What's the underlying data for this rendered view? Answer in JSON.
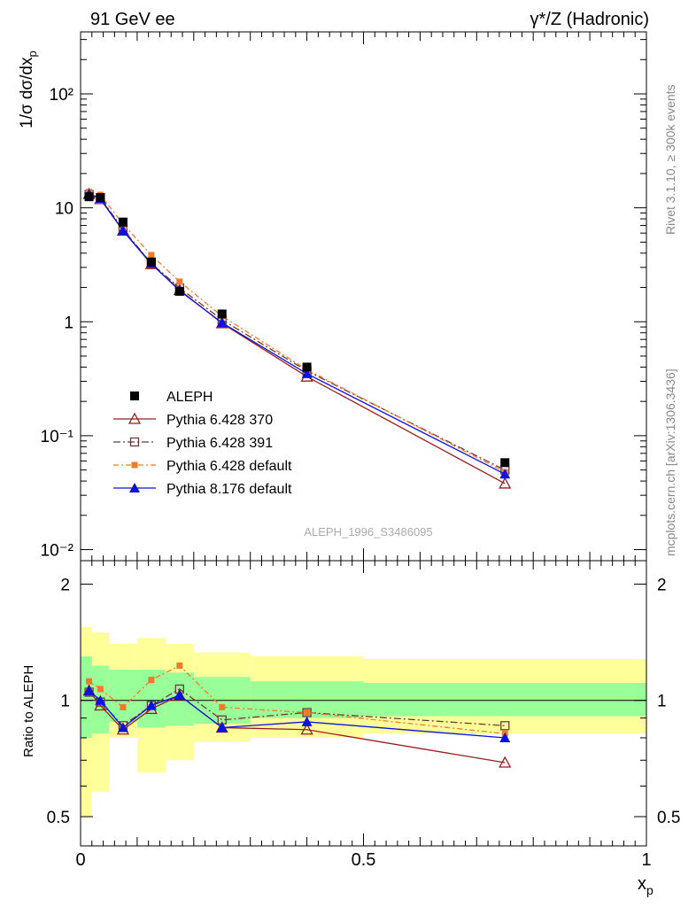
{
  "header": {
    "left_title": "91 GeV ee",
    "right_title": "γ*/Z (Hadronic)"
  },
  "side_labels": {
    "rivet": "Rivet 3.1.10, ≥ 300k events",
    "mcplots": "mcplots.cern.ch [arXiv:1306.3436]"
  },
  "watermark": "ALEPH_1996_S3486095",
  "colors": {
    "data": "#000000",
    "p370": "#9a1d1d",
    "p391": "#6a3a3a",
    "pdef": "#f5792a",
    "p8": "#0b11e6",
    "band_yellow": "#ffff99",
    "band_green": "#99ff99"
  },
  "chart_data": [
    {
      "type": "scatter",
      "title": "91 GeV ee",
      "ylabel": "1/σ dσ/dx_p",
      "xlabel": "",
      "yscale": "log",
      "ylim": [
        0.008,
        350
      ],
      "xlim": [
        0,
        1
      ],
      "y_ticks": [
        {
          "value": 0.01,
          "label": "10⁻²"
        },
        {
          "value": 0.1,
          "label": "10⁻¹"
        },
        {
          "value": 1,
          "label": "1"
        },
        {
          "value": 10,
          "label": "10"
        },
        {
          "value": 100,
          "label": "10²"
        }
      ],
      "x": [
        0.015,
        0.035,
        0.075,
        0.125,
        0.175,
        0.25,
        0.4,
        0.75
      ],
      "series": [
        {
          "name": "ALEPH",
          "key": "data",
          "marker": "square-filled",
          "values": [
            12.5,
            12.3,
            7.5,
            3.35,
            1.85,
            1.17,
            0.4,
            0.058
          ]
        },
        {
          "name": "Pythia 6.428 370",
          "key": "p370",
          "marker": "triangle-open",
          "dash": "",
          "values": [
            13.2,
            11.9,
            6.3,
            3.2,
            1.9,
            0.97,
            0.33,
            0.038
          ]
        },
        {
          "name": "Pythia 6.428 391",
          "key": "p391",
          "marker": "square-open",
          "dash": "8,3,2,3",
          "values": [
            13.1,
            12.2,
            6.5,
            3.25,
            1.98,
            1.04,
            0.37,
            0.05
          ]
        },
        {
          "name": "Pythia 6.428 default",
          "key": "pdef",
          "marker": "square-filled-small",
          "dash": "6,3,2,3",
          "values": [
            13.8,
            13.0,
            7.2,
            3.85,
            2.25,
            1.12,
            0.38,
            0.048
          ]
        },
        {
          "name": "Pythia 8.176 default",
          "key": "p8",
          "marker": "triangle-filled",
          "dash": "",
          "values": [
            13.3,
            12.1,
            6.3,
            3.25,
            1.87,
            0.98,
            0.35,
            0.046
          ]
        }
      ]
    },
    {
      "type": "line",
      "ylabel": "Ratio to ALEPH",
      "xlabel": "x_p",
      "yscale": "log",
      "ylim": [
        0.42,
        2.3
      ],
      "xlim": [
        0,
        1
      ],
      "y_ticks": [
        {
          "value": 0.5,
          "label": "0.5"
        },
        {
          "value": 1,
          "label": "1"
        },
        {
          "value": 2,
          "label": "2"
        }
      ],
      "x_ticks": [
        {
          "value": 0,
          "label": "0"
        },
        {
          "value": 0.5,
          "label": "0.5"
        },
        {
          "value": 1,
          "label": "1"
        }
      ],
      "bins": [
        [
          0,
          0.02
        ],
        [
          0.02,
          0.05
        ],
        [
          0.05,
          0.1
        ],
        [
          0.1,
          0.15
        ],
        [
          0.15,
          0.2
        ],
        [
          0.2,
          0.3
        ],
        [
          0.3,
          0.5
        ],
        [
          0.5,
          1.0
        ]
      ],
      "band_yellow": [
        [
          0.5,
          1.55
        ],
        [
          0.58,
          1.5
        ],
        [
          0.8,
          1.4
        ],
        [
          0.65,
          1.45
        ],
        [
          0.7,
          1.4
        ],
        [
          0.78,
          1.33
        ],
        [
          0.8,
          1.3
        ],
        [
          0.82,
          1.28
        ]
      ],
      "band_green": [
        [
          0.8,
          1.3
        ],
        [
          0.82,
          1.23
        ],
        [
          0.88,
          1.2
        ],
        [
          0.85,
          1.2
        ],
        [
          0.86,
          1.18
        ],
        [
          0.87,
          1.15
        ],
        [
          0.9,
          1.12
        ],
        [
          0.91,
          1.11
        ]
      ],
      "x": [
        0.015,
        0.035,
        0.075,
        0.125,
        0.175,
        0.25,
        0.4,
        0.75
      ],
      "series": [
        {
          "name": "Pythia 6.428 370",
          "key": "p370",
          "marker": "triangle-open",
          "dash": "",
          "values": [
            1.06,
            0.97,
            0.84,
            0.95,
            1.03,
            0.85,
            0.84,
            0.69
          ]
        },
        {
          "name": "Pythia 6.428 391",
          "key": "p391",
          "marker": "square-open",
          "dash": "8,3,2,3",
          "values": [
            1.05,
            0.99,
            0.86,
            0.97,
            1.07,
            0.89,
            0.93,
            0.86
          ]
        },
        {
          "name": "Pythia 6.428 default",
          "key": "pdef",
          "marker": "square-filled-small",
          "dash": "6,3,2,3",
          "values": [
            1.12,
            1.07,
            0.96,
            1.13,
            1.23,
            0.96,
            0.93,
            0.82
          ]
        },
        {
          "name": "Pythia 8.176 default",
          "key": "p8",
          "marker": "triangle-filled",
          "dash": "",
          "values": [
            1.06,
            1.0,
            0.85,
            0.97,
            1.03,
            0.85,
            0.88,
            0.8
          ]
        }
      ]
    }
  ]
}
